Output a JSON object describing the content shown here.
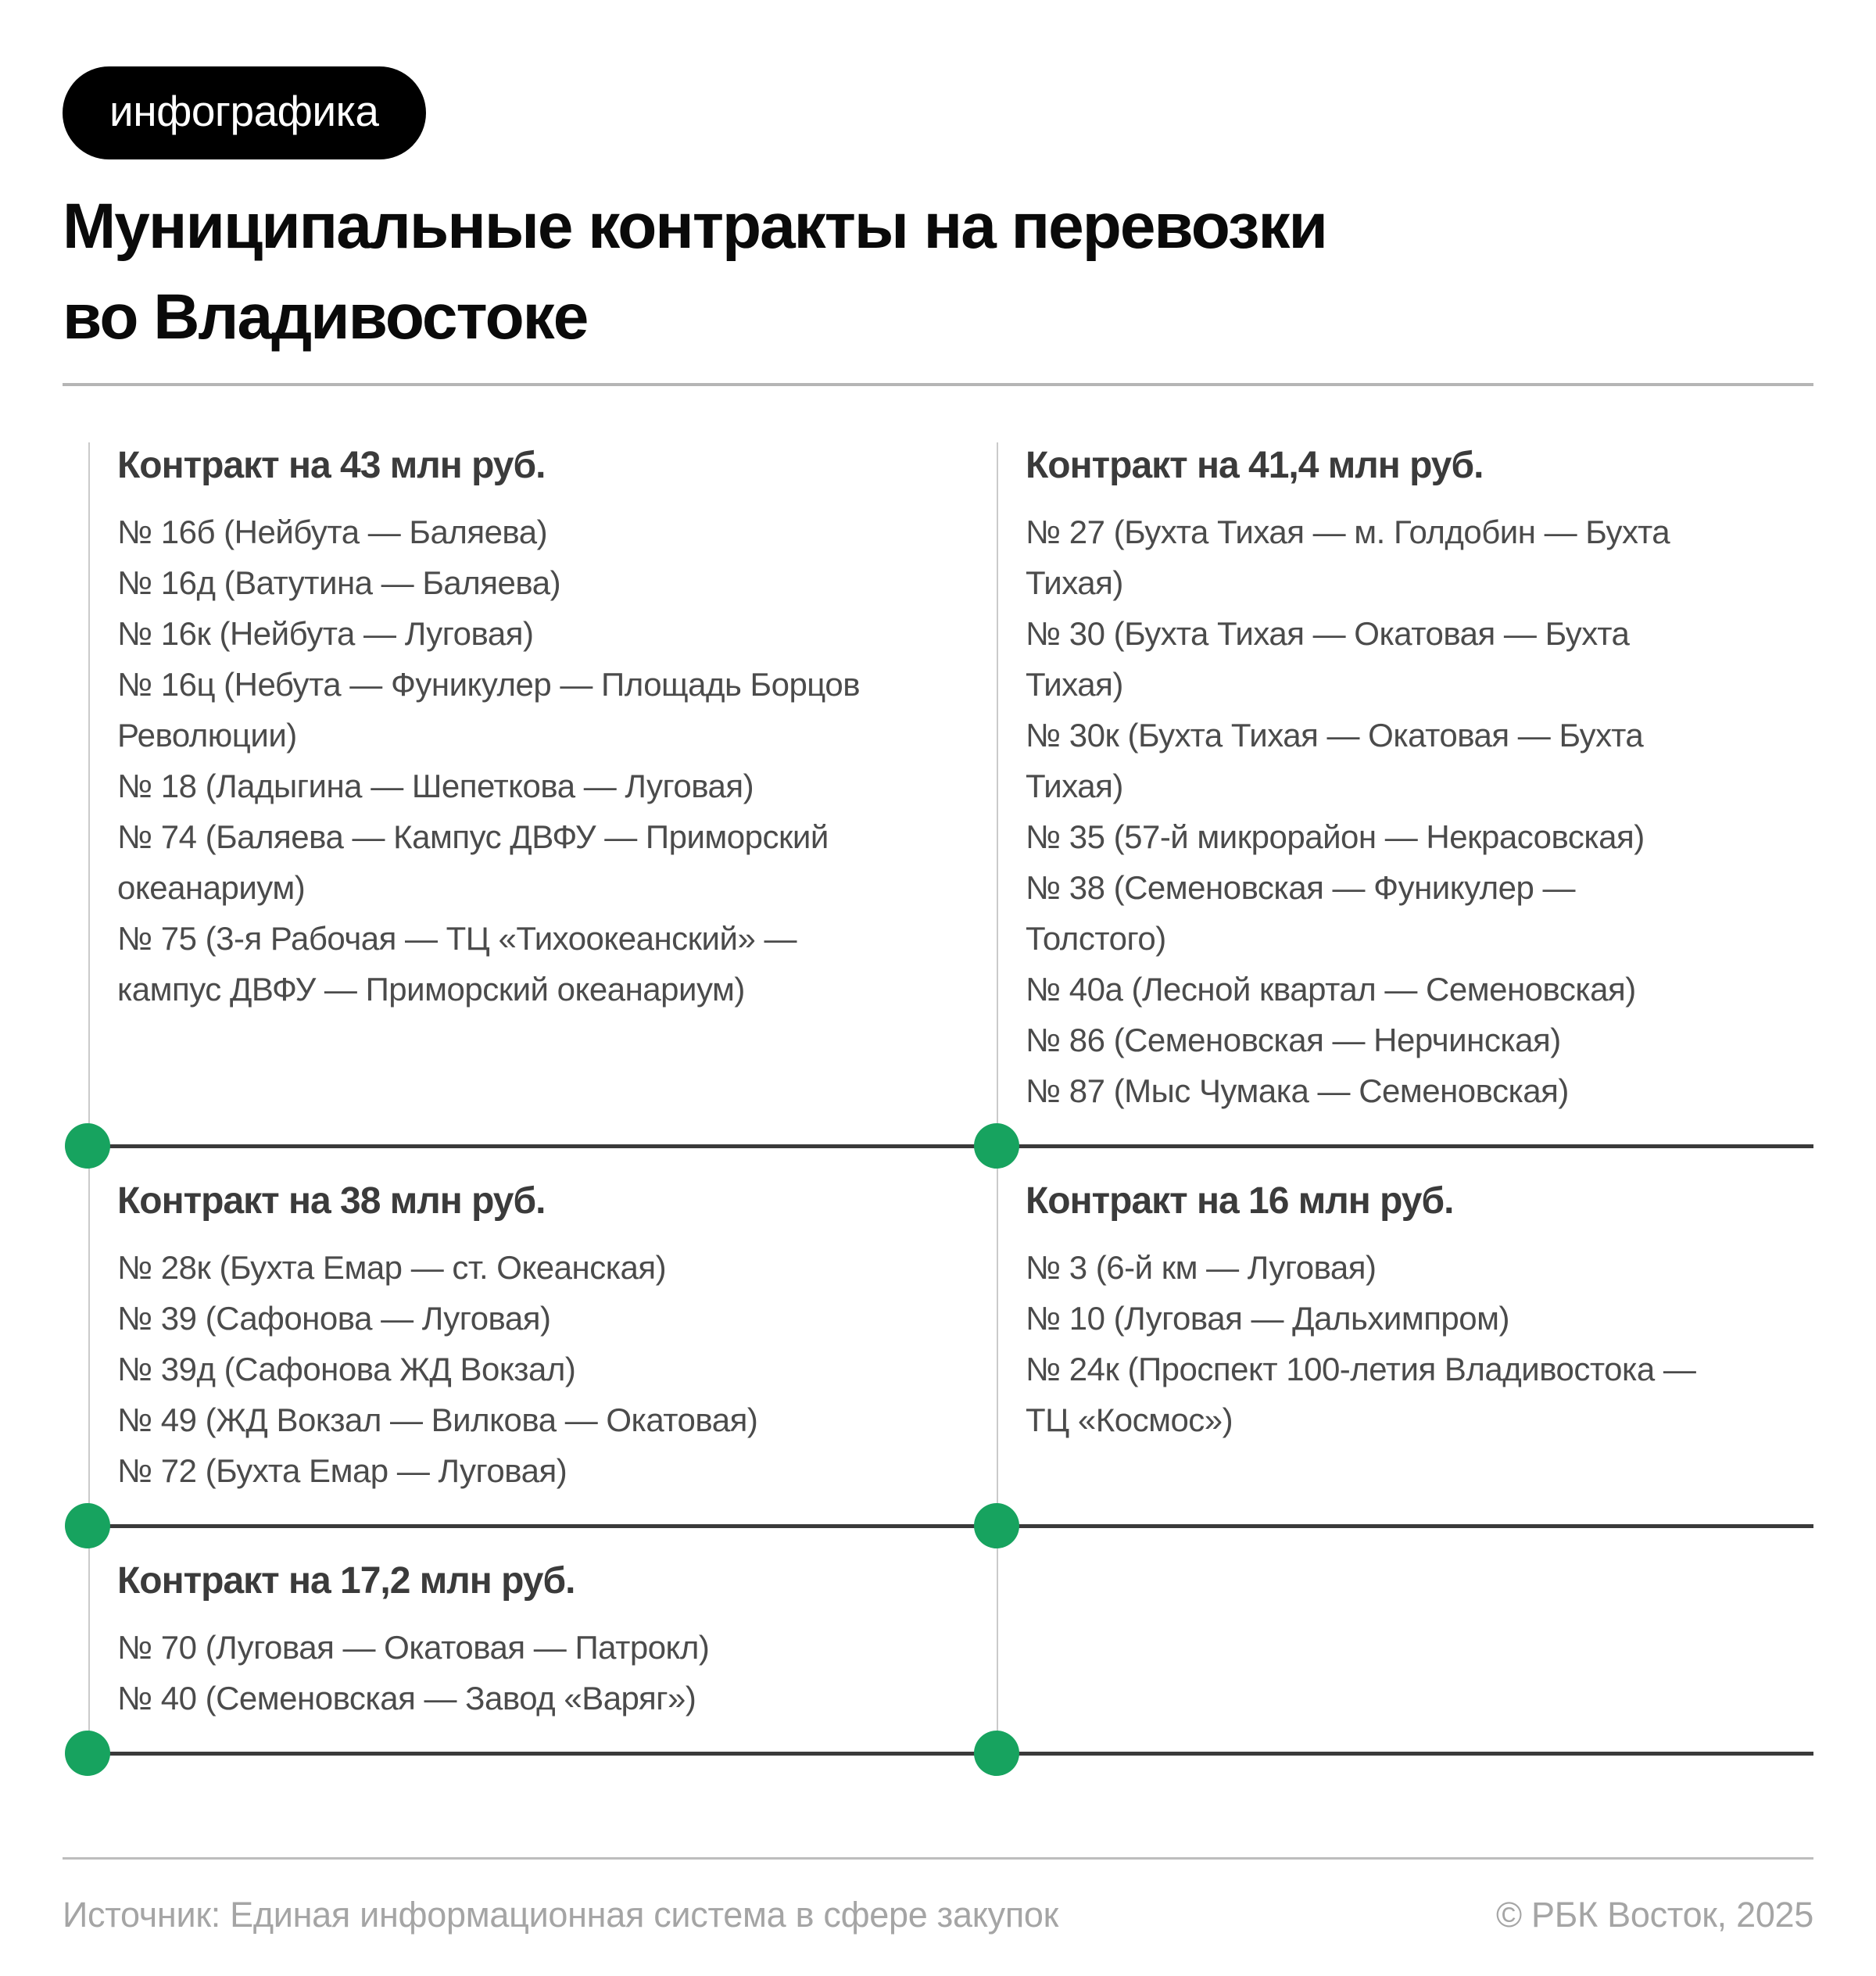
{
  "badge": {
    "label": "инфографика"
  },
  "title": {
    "lines": [
      "Муниципальные контракты на перевозки",
      "во Владивостоке"
    ]
  },
  "colors": {
    "accent_green": "#17a35f",
    "divider_dark": "#3a3a3a",
    "heading_gray": "#3b3b3b"
  },
  "rows": [
    {
      "left": {
        "heading": "Контракт на 43 млн руб.",
        "items": [
          "№ 16б (Нейбута — Баляева)",
          "№ 16д (Ватутина — Баляева)",
          "№ 16к (Нейбута — Луговая)",
          "№ 16ц (Небута — Фуникулер — Площадь Борцов\nРеволюции)",
          "№ 18 (Ладыгина — Шепеткова — Луговая)",
          "№ 74 (Баляева — Кампус ДВФУ — Приморский\nокеанариум)",
          "№ 75 (3-я Рабочая — ТЦ «Тихоокеанский» —\nкампус ДВФУ — Приморский океанариум)"
        ]
      },
      "right": {
        "heading": "Контракт на 41,4 млн руб.",
        "items": [
          "№ 27 (Бухта Тихая — м. Голдобин — Бухта\nТихая)",
          "№ 30 (Бухта Тихая — Окатовая — Бухта\nТихая)",
          "№ 30к (Бухта Тихая — Окатовая — Бухта\nТихая)",
          "№ 35 (57-й микрорайон — Некрасовская)",
          "№ 38 (Семеновская — Фуникулер —\nТолстого)",
          "№ 40а (Лесной квартал — Семеновская)",
          "№ 86 (Семеновская — Нерчинская)",
          "№ 87 (Мыс Чумака — Семеновская)"
        ]
      }
    },
    {
      "left": {
        "heading": "Контракт на 38 млн руб.",
        "items": [
          "№ 28к (Бухта Емар — ст. Океанская)",
          "№ 39 (Сафонова — Луговая)",
          "№ 39д (Сафонова ЖД Вокзал)",
          "№ 49 (ЖД Вокзал — Вилкова — Окатовая)",
          "№ 72 (Бухта Емар — Луговая)"
        ]
      },
      "right": {
        "heading": "Контракт на 16 млн руб.",
        "items": [
          "№ 3 (6-й км — Луговая)",
          "№ 10 (Луговая — Дальхимпром)",
          "№ 24к (Проспект 100-летия Владивостока —\nТЦ «Космос»)"
        ]
      }
    },
    {
      "left": {
        "heading": "Контракт на 17,2 млн руб.",
        "items": [
          "№ 70 (Луговая — Окатовая — Патрокл)",
          "№ 40 (Семеновская — Завод «Варяг»)"
        ]
      },
      "right": null
    }
  ],
  "footer": {
    "source": "Источник: Единая информационная система в сфере закупок",
    "copyright": "© РБК Восток, 2025"
  }
}
